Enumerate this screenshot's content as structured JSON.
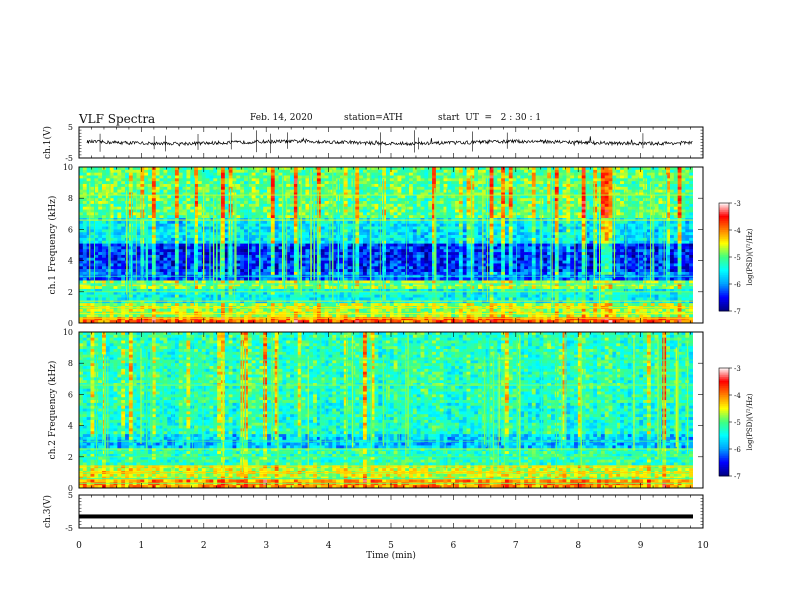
{
  "header": {
    "title": "VLF Spectra",
    "date": "Feb. 14, 2020",
    "station": "station=ATH",
    "start": "start  UT  =   2 : 30 : 1"
  },
  "chart_data": [
    {
      "type": "line",
      "panel": "ch.1 waveform",
      "ylabel": "ch.1(V)",
      "ylim": [
        -5,
        5
      ],
      "yticks": [
        "5",
        "-5"
      ],
      "xlim": [
        0,
        10
      ],
      "series": [
        {
          "values_desc": "noisy signal around 0 V",
          "level": 0
        }
      ]
    },
    {
      "type": "heatmap",
      "panel": "ch.1 spectrogram",
      "ylabel": "ch.1  Frequency  (kHz)",
      "ylim": [
        0,
        10
      ],
      "yticks": [
        "0",
        "2",
        "4",
        "6",
        "8",
        "10"
      ],
      "xlim": [
        0,
        9.8
      ],
      "colorbar": {
        "label": "log(PSD)(V²/Hz)",
        "range": [
          -7,
          -3
        ],
        "ticks": [
          "-3",
          "-4",
          "-5",
          "-6",
          "-7"
        ]
      },
      "bands": [
        {
          "f": [
            0.0,
            0.3
          ],
          "level": -4.0
        },
        {
          "f": [
            0.3,
            1.2
          ],
          "level": -4.8
        },
        {
          "f": [
            1.2,
            2.2
          ],
          "level": -5.6
        },
        {
          "f": [
            2.2,
            2.8
          ],
          "level": -4.9
        },
        {
          "f": [
            2.8,
            3.2
          ],
          "level": -6.3
        },
        {
          "f": [
            3.2,
            5.0
          ],
          "level": -6.6
        },
        {
          "f": [
            5.0,
            6.8
          ],
          "level": -5.8
        },
        {
          "f": [
            6.8,
            10.0
          ],
          "level": -5.2
        }
      ]
    },
    {
      "type": "heatmap",
      "panel": "ch.2 spectrogram",
      "ylabel": "ch.2  Frequency  (kHz)",
      "ylim": [
        0,
        10
      ],
      "yticks": [
        "0",
        "2",
        "4",
        "6",
        "8",
        "10"
      ],
      "xlim": [
        0,
        9.8
      ],
      "colorbar": {
        "label": "log(PSD)(V²/Hz)",
        "range": [
          -7,
          -3
        ],
        "ticks": [
          "-3",
          "-4",
          "-5",
          "-6",
          "-7"
        ]
      },
      "bands": [
        {
          "f": [
            0.0,
            0.5
          ],
          "level": -4.2
        },
        {
          "f": [
            0.5,
            1.5
          ],
          "level": -4.7
        },
        {
          "f": [
            1.5,
            2.5
          ],
          "level": -5.3
        },
        {
          "f": [
            2.5,
            3.5
          ],
          "level": -5.9
        },
        {
          "f": [
            3.5,
            5.5
          ],
          "level": -5.5
        },
        {
          "f": [
            5.5,
            10.0
          ],
          "level": -5.4
        }
      ]
    },
    {
      "type": "line",
      "panel": "ch.3 waveform",
      "ylabel": "ch.3(V)",
      "ylim": [
        -5,
        5
      ],
      "yticks": [
        "5",
        "-5"
      ],
      "xlim": [
        0,
        10
      ],
      "series": [
        {
          "values_desc": "flat signal",
          "level": -1.5
        }
      ]
    }
  ],
  "xaxis": {
    "label": "Time  (min)",
    "ticks": [
      "0",
      "1",
      "2",
      "3",
      "4",
      "5",
      "6",
      "7",
      "8",
      "9",
      "10"
    ]
  },
  "colors": {
    "scale": [
      "#000080",
      "#0000ff",
      "#00a0ff",
      "#00ffff",
      "#40ff80",
      "#ffff00",
      "#ff8000",
      "#ff0000",
      "#ffffff"
    ]
  }
}
